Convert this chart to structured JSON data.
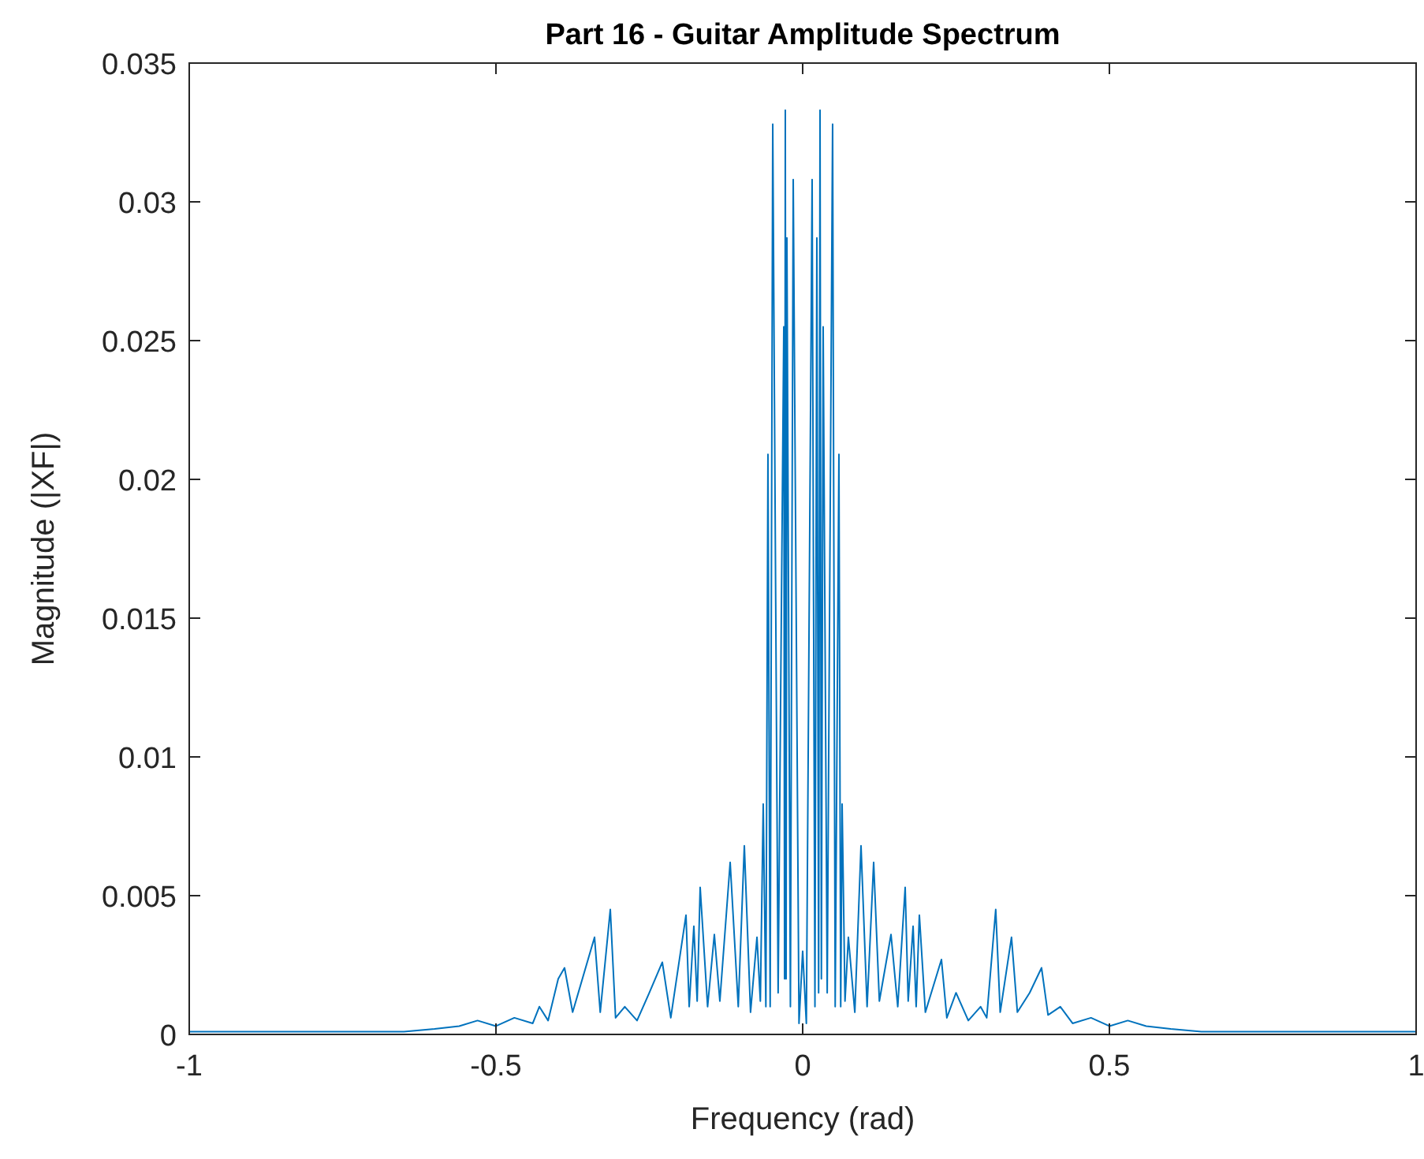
{
  "chart_data": {
    "type": "line",
    "title": "Part 16 - Guitar Amplitude Spectrum",
    "xlabel": "Frequency (rad)",
    "ylabel": "Magnitude (|XF|)",
    "xlim": [
      -1,
      1
    ],
    "xticks": [
      -1,
      -0.5,
      0,
      0.5,
      1
    ],
    "ylim": [
      0,
      0.035
    ],
    "yticks": [
      0,
      0.005,
      0.01,
      0.015,
      0.02,
      0.025,
      0.03,
      0.035
    ],
    "grid": false,
    "marker": "none",
    "line_style": "solid",
    "x": [
      -1,
      -0.8,
      -0.7,
      -0.65,
      -0.6,
      -0.56,
      -0.53,
      -0.5,
      -0.47,
      -0.44,
      -0.4293,
      -0.415,
      -0.3985,
      -0.3882,
      -0.375,
      -0.3393,
      -0.33,
      -0.3136,
      -0.305,
      -0.29,
      -0.27,
      -0.25,
      -0.2288,
      -0.215,
      -0.1902,
      -0.185,
      -0.1774,
      -0.172,
      -0.1671,
      -0.155,
      -0.144,
      -0.135,
      -0.1182,
      -0.105,
      -0.0951,
      -0.085,
      -0.0745,
      -0.069,
      -0.0643,
      -0.06,
      -0.0566,
      -0.053,
      -0.0488,
      -0.04,
      -0.0308,
      -0.0295,
      -0.0283,
      -0.027,
      -0.0257,
      -0.02,
      -0.0154,
      -0.006,
      0,
      0.006,
      0.0154,
      0.02,
      0.0231,
      0.026,
      0.0283,
      0.0305,
      0.0334,
      0.04,
      0.0488,
      0.053,
      0.0591,
      0.062,
      0.0643,
      0.069,
      0.0745,
      0.085,
      0.0951,
      0.105,
      0.1157,
      0.125,
      0.144,
      0.155,
      0.1671,
      0.172,
      0.18,
      0.185,
      0.1902,
      0.2,
      0.2262,
      0.235,
      0.25,
      0.27,
      0.29,
      0.3,
      0.3147,
      0.322,
      0.3404,
      0.35,
      0.37,
      0.3894,
      0.4,
      0.42,
      0.44,
      0.47,
      0.5,
      0.53,
      0.56,
      0.6,
      0.65,
      0.7,
      0.8,
      1
    ],
    "series": [
      {
        "color": "#0072bd",
        "values": [
          0.0001,
          0.0001,
          0.0001,
          0.0001,
          0.0002,
          0.0003,
          0.0005,
          0.0003,
          0.0006,
          0.0004,
          0.001,
          0.0005,
          0.002,
          0.0024,
          0.0008,
          0.0035,
          0.0008,
          0.0045,
          0.0006,
          0.001,
          0.0005,
          0.0015,
          0.0026,
          0.0006,
          0.0043,
          0.001,
          0.0039,
          0.0012,
          0.0053,
          0.001,
          0.0036,
          0.0012,
          0.0062,
          0.001,
          0.0068,
          0.0008,
          0.0035,
          0.0012,
          0.0083,
          0.001,
          0.0209,
          0.001,
          0.0328,
          0.0015,
          0.0255,
          0.002,
          0.0333,
          0.002,
          0.0287,
          0.001,
          0.0308,
          0.0004,
          0.003,
          0.0004,
          0.0308,
          0.001,
          0.0287,
          0.0015,
          0.0333,
          0.002,
          0.0255,
          0.0015,
          0.0328,
          0.001,
          0.0209,
          0.001,
          0.0083,
          0.0012,
          0.0035,
          0.0008,
          0.0068,
          0.001,
          0.0062,
          0.0012,
          0.0036,
          0.001,
          0.0053,
          0.0012,
          0.0039,
          0.001,
          0.0043,
          0.0008,
          0.0027,
          0.0006,
          0.0015,
          0.0005,
          0.001,
          0.0006,
          0.0045,
          0.0008,
          0.0035,
          0.0008,
          0.0015,
          0.0024,
          0.0007,
          0.001,
          0.0004,
          0.0006,
          0.0003,
          0.0005,
          0.0003,
          0.0002,
          0.0001,
          0.0001,
          0.0001,
          0.0001
        ]
      }
    ]
  }
}
